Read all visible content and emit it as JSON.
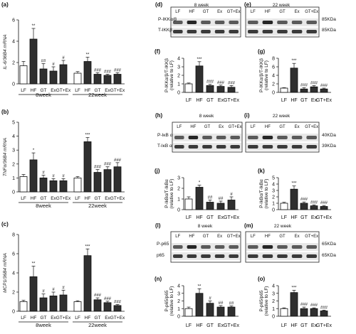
{
  "chart_data": [
    {
      "panel": "(a)",
      "type": "bar",
      "ylabel": "IL-6/36B4 mRNA",
      "ylim": [
        0,
        6
      ],
      "yticks": [
        0,
        2,
        4,
        6
      ],
      "groups": [
        {
          "label": "8week",
          "categories": [
            "LF",
            "HF",
            "GT",
            "Ex",
            "GT+Ex"
          ],
          "values": [
            1.7,
            4.2,
            1.4,
            1.2,
            1.8
          ],
          "errors": [
            0.4,
            1.0,
            0.5,
            0.4,
            0.4
          ],
          "marks": [
            "",
            "**",
            "##",
            "#",
            "#"
          ]
        },
        {
          "label": "22week",
          "categories": [
            "LF",
            "HF",
            "GT",
            "Ex",
            "GT+Ex"
          ],
          "values": [
            1.0,
            2.1,
            0.9,
            0.8,
            0.9
          ],
          "errors": [
            0.15,
            0.4,
            0.15,
            0.1,
            0.15
          ],
          "marks": [
            "",
            "**",
            "###",
            "###",
            "###"
          ]
        }
      ]
    },
    {
      "panel": "(b)",
      "type": "bar",
      "ylabel": "TNFα/36B4 mRNA",
      "ylim": [
        0,
        5
      ],
      "yticks": [
        0,
        1,
        2,
        3,
        4,
        5
      ],
      "groups": [
        {
          "label": "8week",
          "categories": [
            "LF",
            "HF",
            "GT",
            "Ex",
            "GT+Ex"
          ],
          "values": [
            1.1,
            2.3,
            1.0,
            0.8,
            0.8
          ],
          "errors": [
            0.15,
            0.5,
            0.2,
            0.15,
            0.15
          ],
          "marks": [
            "",
            "*",
            "#",
            "#",
            "#"
          ]
        },
        {
          "label": "22week",
          "categories": [
            "LF",
            "HF",
            "GT",
            "Ex",
            "GT+Ex"
          ],
          "values": [
            1.0,
            3.6,
            1.4,
            1.6,
            1.8
          ],
          "errors": [
            0.1,
            0.3,
            0.2,
            0.2,
            0.3
          ],
          "marks": [
            "",
            "***",
            "###",
            "###",
            "###"
          ]
        }
      ]
    },
    {
      "panel": "(c)",
      "type": "bar",
      "ylabel": "MCP1/36B4 mRNA",
      "ylim": [
        0,
        8
      ],
      "yticks": [
        0,
        2,
        4,
        6,
        8
      ],
      "groups": [
        {
          "label": "8week",
          "categories": [
            "LF",
            "HF",
            "GT",
            "Ex",
            "GT+Ex"
          ],
          "values": [
            1.0,
            3.6,
            1.4,
            1.6,
            1.7
          ],
          "errors": [
            0.15,
            1.1,
            0.4,
            0.4,
            0.5
          ],
          "marks": [
            "",
            "**",
            "#",
            "#",
            "#"
          ]
        },
        {
          "label": "22week",
          "categories": [
            "LF",
            "HF",
            "GT",
            "Ex",
            "GT+Ex"
          ],
          "values": [
            1.0,
            5.8,
            1.2,
            0.9,
            0.6
          ],
          "errors": [
            0.1,
            0.7,
            0.2,
            0.15,
            0.1
          ],
          "marks": [
            "",
            "***",
            "###",
            "###",
            "###"
          ]
        }
      ]
    },
    {
      "panel": "(f)",
      "type": "bar",
      "ylabel": "P-IKKα/β/T-IKKβ (relative to LF)",
      "ylim": [
        0,
        4
      ],
      "yticks": [
        0,
        1,
        2,
        3,
        4
      ],
      "categories": [
        "LF",
        "HF",
        "GT",
        "Ex",
        "GT+Ex"
      ],
      "values": [
        1.0,
        3.1,
        0.8,
        0.7,
        0.6
      ],
      "errors": [
        0.1,
        0.5,
        0.15,
        0.15,
        0.2
      ],
      "marks": [
        "",
        "***",
        "###",
        "###",
        "###"
      ]
    },
    {
      "panel": "(g)",
      "type": "bar",
      "ylabel": "P-IKKα/β/T-IKKβ (relative to LF)",
      "ylim": [
        0,
        8
      ],
      "yticks": [
        0,
        2,
        4,
        6,
        8
      ],
      "categories": [
        "LF",
        "HF",
        "GT",
        "Ex",
        "GT+Ex"
      ],
      "values": [
        1.0,
        5.7,
        0.8,
        1.3,
        0.8
      ],
      "errors": [
        0.1,
        1.1,
        0.3,
        0.3,
        0.2
      ],
      "marks": [
        "",
        "***",
        "###",
        "###",
        "###"
      ]
    },
    {
      "panel": "(j)",
      "type": "bar",
      "ylabel": "P-IkBα/T-IkBα (relative to LF)",
      "ylim": [
        0,
        3
      ],
      "yticks": [
        0,
        1,
        2,
        3
      ],
      "categories": [
        "LF",
        "HF",
        "GT",
        "Ex",
        "GT+Ex"
      ],
      "values": [
        1.0,
        2.1,
        0.7,
        0.6,
        0.9
      ],
      "errors": [
        0.2,
        0.2,
        0.2,
        0.2,
        0.3
      ],
      "marks": [
        "",
        "*",
        "##",
        "##",
        "#"
      ]
    },
    {
      "panel": "(k)",
      "type": "bar",
      "ylabel": "P-IkBα/T-IkBα (relative to LF)",
      "ylim": [
        0,
        5
      ],
      "yticks": [
        0,
        1,
        2,
        3,
        4,
        5
      ],
      "categories": [
        "LF",
        "HF",
        "GT",
        "Ex",
        "GT+Ex"
      ],
      "values": [
        1.0,
        3.2,
        1.0,
        0.6,
        0.5
      ],
      "errors": [
        0.15,
        0.5,
        0.2,
        0.15,
        0.15
      ],
      "marks": [
        "",
        "***",
        "###",
        "###",
        "###"
      ]
    },
    {
      "panel": "(n)",
      "type": "bar",
      "ylabel": "P-p65/p65 (relative to LF)",
      "ylim": [
        0,
        4
      ],
      "yticks": [
        0,
        1,
        2,
        3,
        4
      ],
      "categories": [
        "LF",
        "HF",
        "GT",
        "Ex",
        "GT+Ex"
      ],
      "values": [
        1.0,
        3.0,
        1.7,
        1.2,
        1.2
      ],
      "errors": [
        0.2,
        0.6,
        0.3,
        0.2,
        0.15
      ],
      "marks": [
        "",
        "**",
        "#",
        "##",
        "##"
      ]
    },
    {
      "panel": "(o)",
      "type": "bar",
      "ylabel": "P-p65/p65 (relative to LF)",
      "ylim": [
        0,
        4
      ],
      "yticks": [
        0,
        1,
        2,
        3,
        4
      ],
      "categories": [
        "LF",
        "HF",
        "GT",
        "Ex",
        "GT+Ex"
      ],
      "values": [
        1.0,
        3.1,
        1.0,
        1.0,
        0.7
      ],
      "errors": [
        0.1,
        0.3,
        0.2,
        0.1,
        0.1
      ],
      "marks": [
        "",
        "***",
        "###",
        "###",
        "###"
      ]
    }
  ],
  "blots": [
    {
      "panel": "(d)",
      "title": "8 week",
      "lanes": [
        "LF",
        "HF",
        "GT",
        "Ex",
        "GT+Ex"
      ],
      "rows": [
        "P-IKKα/β",
        "T-IKKβ"
      ],
      "sizes": []
    },
    {
      "panel": "(e)",
      "title": "22 week",
      "lanes": [
        "LF",
        "HF",
        "GT",
        "Ex",
        "GT+Ex"
      ],
      "rows": [],
      "sizes": [
        "85KDa",
        "85KDa"
      ]
    },
    {
      "panel": "(h)",
      "title": "8 week",
      "lanes": [
        "LF",
        "HF",
        "GT",
        "Ex",
        "GT+Ex"
      ],
      "rows": [
        "P-IκB α",
        "T-IκB α"
      ],
      "sizes": []
    },
    {
      "panel": "(i)",
      "title": "22 week",
      "lanes": [
        "LF",
        "HF",
        "GT",
        "Ex",
        "GT+Ex"
      ],
      "rows": [],
      "sizes": [
        "40KDa",
        "39KDa"
      ]
    },
    {
      "panel": "(l)",
      "title": "8 week",
      "lanes": [
        "LF",
        "HF",
        "GT",
        "Ex",
        "GT+Ex"
      ],
      "rows": [
        "P-p65",
        "p65"
      ],
      "sizes": []
    },
    {
      "panel": "(m)",
      "title": "22 week",
      "lanes": [
        "LF",
        "HF",
        "GT",
        "Ex",
        "GT+Ex"
      ],
      "rows": [],
      "sizes": [
        "65KDa",
        "65KDa"
      ]
    }
  ]
}
